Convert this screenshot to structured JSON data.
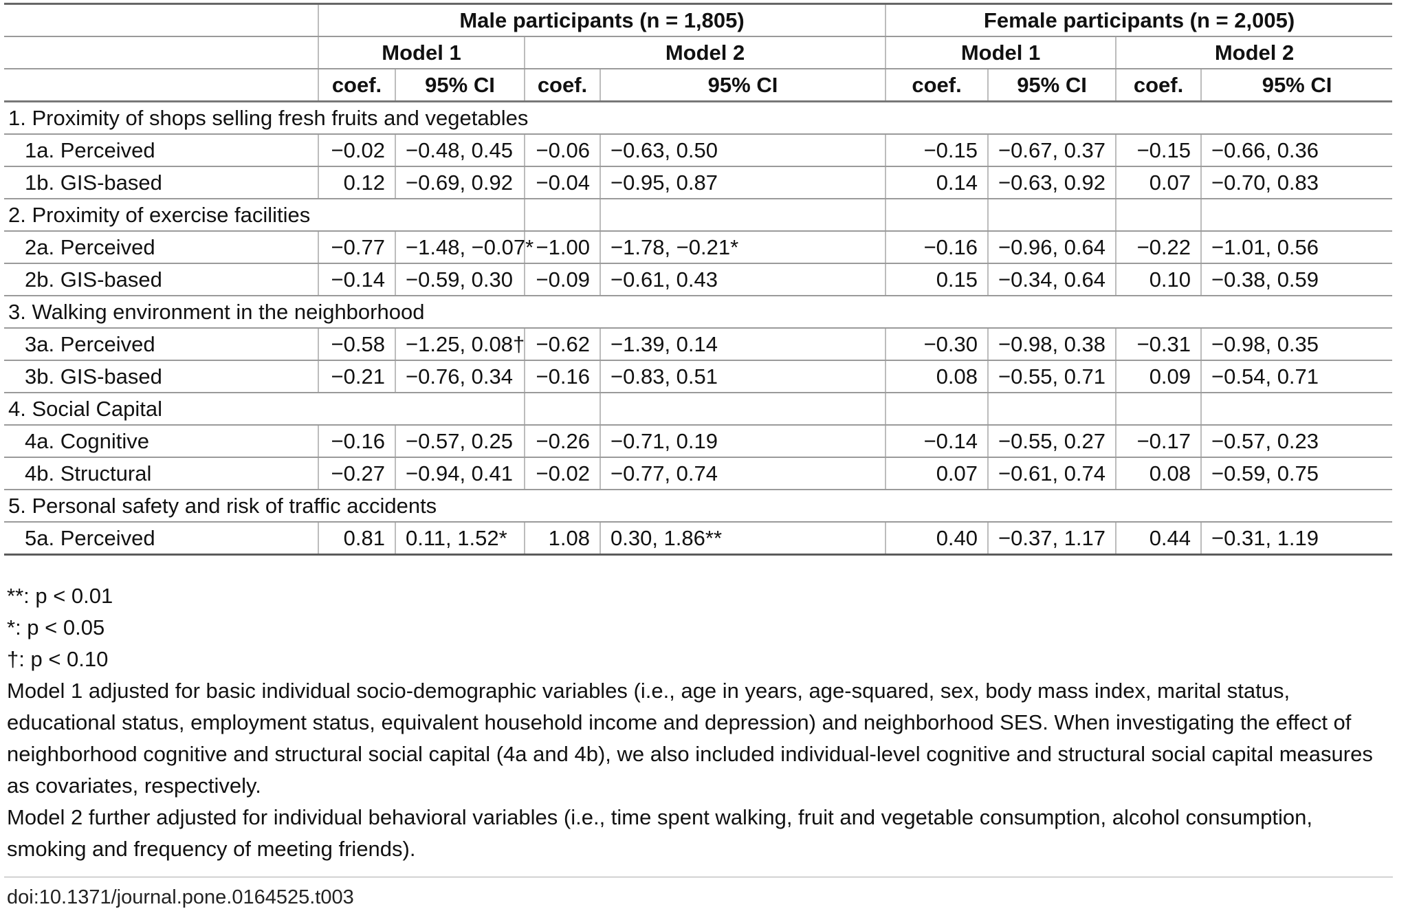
{
  "table": {
    "groups": [
      {
        "label": "Male participants (n = 1,805)"
      },
      {
        "label": "Female participants (n = 2,005)"
      }
    ],
    "model_headers": [
      "Model 1",
      "Model 2",
      "Model 1",
      "Model 2"
    ],
    "stat_headers": [
      "coef.",
      "95% CI",
      "coef.",
      "95% CI",
      "coef.",
      "95% CI",
      "coef.",
      "95% CI"
    ],
    "rows": [
      {
        "type": "section",
        "bordered": false,
        "label": "1. Proximity of shops selling fresh fruits and vegetables"
      },
      {
        "type": "data",
        "label": "1a. Perceived",
        "values": [
          "−0.02",
          "−0.48, 0.45",
          "−0.06",
          "−0.63, 0.50",
          "−0.15",
          "−0.67, 0.37",
          "−0.15",
          "−0.66, 0.36"
        ]
      },
      {
        "type": "data",
        "label": "1b. GIS-based",
        "values": [
          "0.12",
          "−0.69, 0.92",
          "−0.04",
          "−0.95, 0.87",
          "0.14",
          "−0.63, 0.92",
          "0.07",
          "−0.70, 0.83"
        ]
      },
      {
        "type": "section",
        "bordered": true,
        "label": "2. Proximity of exercise facilities"
      },
      {
        "type": "data",
        "label": "2a. Perceived",
        "values": [
          "−0.77",
          "−1.48, −0.07*",
          "−1.00",
          "−1.78, −0.21*",
          "−0.16",
          "−0.96, 0.64",
          "−0.22",
          "−1.01, 0.56"
        ]
      },
      {
        "type": "data",
        "label": "2b. GIS-based",
        "values": [
          "−0.14",
          "−0.59, 0.30",
          "−0.09",
          "−0.61, 0.43",
          "0.15",
          "−0.34, 0.64",
          "0.10",
          "−0.38, 0.59"
        ]
      },
      {
        "type": "section",
        "bordered": false,
        "label": "3. Walking environment in the neighborhood"
      },
      {
        "type": "data",
        "label": "3a. Perceived",
        "values": [
          "−0.58",
          "−1.25, 0.08†",
          "−0.62",
          "−1.39, 0.14",
          "−0.30",
          "−0.98, 0.38",
          "−0.31",
          "−0.98, 0.35"
        ]
      },
      {
        "type": "data",
        "label": "3b. GIS-based",
        "values": [
          "−0.21",
          "−0.76, 0.34",
          "−0.16",
          "−0.83, 0.51",
          "0.08",
          "−0.55, 0.71",
          "0.09",
          "−0.54, 0.71"
        ]
      },
      {
        "type": "section",
        "bordered": true,
        "label": "4. Social Capital"
      },
      {
        "type": "data",
        "label": "4a. Cognitive",
        "values": [
          "−0.16",
          "−0.57, 0.25",
          "−0.26",
          "−0.71, 0.19",
          "−0.14",
          "−0.55, 0.27",
          "−0.17",
          "−0.57, 0.23"
        ]
      },
      {
        "type": "data",
        "label": "4b. Structural",
        "values": [
          "−0.27",
          "−0.94, 0.41",
          "−0.02",
          "−0.77, 0.74",
          "0.07",
          "−0.61, 0.74",
          "0.08",
          "−0.59, 0.75"
        ]
      },
      {
        "type": "section",
        "bordered": false,
        "label": "5. Personal safety and risk of traffic accidents"
      },
      {
        "type": "data",
        "label": "5a. Perceived",
        "values": [
          "0.81",
          "0.11, 1.52*",
          "1.08",
          "0.30, 1.86**",
          "0.40",
          "−0.37, 1.17",
          "0.44",
          "−0.31, 1.19"
        ]
      }
    ]
  },
  "footnotes": {
    "sig": [
      "**: p < 0.01",
      "*: p < 0.05",
      "†: p < 0.10"
    ],
    "model1_note": "Model 1 adjusted for basic individual socio-demographic variables (i.e., age in years, age-squared, sex, body mass index, marital status, educational status, employment status, equivalent household income and depression) and neighborhood SES. When investigating the effect of neighborhood cognitive and structural social capital (4a and 4b), we also included individual-level cognitive and structural social capital measures as covariates, respectively.",
    "model2_note": "Model 2 further adjusted for individual behavioral variables (i.e., time spent walking, fruit and vegetable consumption, alcohol consumption, smoking and frequency of meeting friends).",
    "doi": "doi:10.1371/journal.pone.0164525.t003"
  }
}
